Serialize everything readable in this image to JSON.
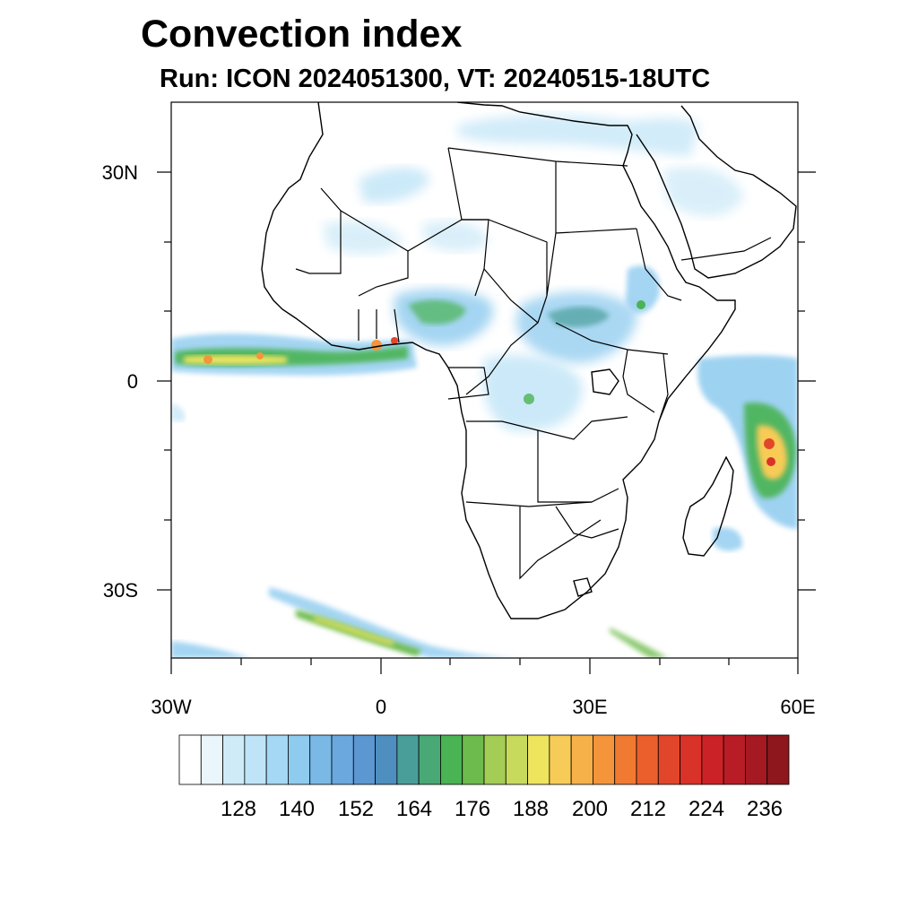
{
  "title": "Convection index",
  "subtitle": "Run: ICON 2024051300,  VT: 20240515-18UTC",
  "axes": {
    "lat_labels": [
      "30N",
      "0",
      "30S"
    ],
    "lon_labels": [
      "30W",
      "0",
      "30E",
      "60E"
    ]
  },
  "colorbar": {
    "labels": [
      "128",
      "140",
      "152",
      "164",
      "176",
      "188",
      "200",
      "212",
      "224",
      "236"
    ],
    "colors": [
      "#ffffff",
      "#eaf6fc",
      "#d0ebf8",
      "#bfe4f7",
      "#a4d8f4",
      "#8ecbef",
      "#7ab8e6",
      "#6aa8dd",
      "#5c97d2",
      "#4e8fc0",
      "#4a9e9a",
      "#48a976",
      "#4ab353",
      "#6dbb4c",
      "#a3cd55",
      "#c8da5c",
      "#eee45e",
      "#f7cb57",
      "#f6b148",
      "#f4953c",
      "#f07a32",
      "#ea5f2c",
      "#e2462a",
      "#d93229",
      "#cb2227",
      "#b81c25",
      "#a51a22",
      "#8e171e"
    ]
  }
}
